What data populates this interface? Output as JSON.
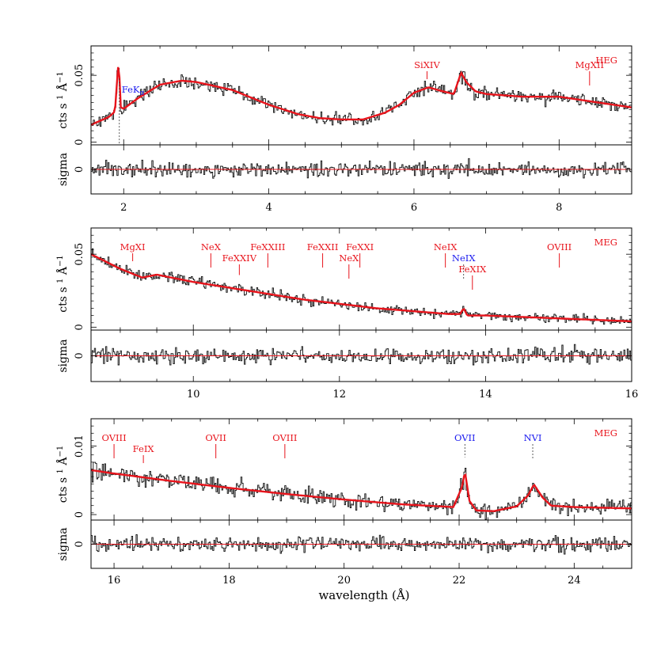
{
  "colors": {
    "data": "#111111",
    "model": "#e8141c",
    "blue": "#1a1aee",
    "frame": "#000000"
  },
  "chart_data": {
    "type": "line",
    "x_label": "wavelength (Å)",
    "x_label_plain": "wavelength (",
    "x_label_unit": "Å",
    "x_label_close": ")",
    "y_label_top": "cts s",
    "y_label_sup1": "1",
    "y_label_A": "Å",
    "y_label_sup2": "−1",
    "resid_label": "sigma",
    "panels": [
      {
        "instrument": "HEG",
        "xlim": [
          1.55,
          9.0
        ],
        "xticks": [
          "2",
          "4",
          "6",
          "8"
        ],
        "ylim": [
          -0.002,
          0.072
        ],
        "yticks": [
          "0",
          "0.05"
        ],
        "resid_ticks": [
          "0"
        ],
        "model_x": [
          1.55,
          1.8,
          1.88,
          1.93,
          1.96,
          2.0,
          2.2,
          2.5,
          2.8,
          3.0,
          3.5,
          4.0,
          4.4,
          4.7,
          5.0,
          5.3,
          5.6,
          5.8,
          6.0,
          6.2,
          6.4,
          6.55,
          6.65,
          6.72,
          6.85,
          7.0,
          7.5,
          8.0,
          8.5,
          9.0
        ],
        "model_y": [
          0.013,
          0.019,
          0.023,
          0.062,
          0.026,
          0.025,
          0.033,
          0.043,
          0.046,
          0.045,
          0.039,
          0.028,
          0.021,
          0.018,
          0.017,
          0.017,
          0.022,
          0.028,
          0.037,
          0.041,
          0.038,
          0.036,
          0.052,
          0.045,
          0.038,
          0.036,
          0.034,
          0.034,
          0.03,
          0.026
        ],
        "noise": 0.007,
        "lines": [
          {
            "label": "FeK",
            "sub": "α",
            "wl": 1.94,
            "color": "blue",
            "pos": "below"
          },
          {
            "label": "SiXIV",
            "wl": 6.18,
            "color": "red",
            "pos": "above"
          },
          {
            "label": "MgXII",
            "wl": 8.42,
            "color": "red",
            "pos": "above"
          }
        ]
      },
      {
        "instrument": "MEG",
        "xlim": [
          8.6,
          16.0
        ],
        "xticks": [
          "10",
          "12",
          "14",
          "16"
        ],
        "ylim": [
          -0.002,
          0.068
        ],
        "yticks": [
          "0",
          "0.05"
        ],
        "resid_ticks": [
          "0"
        ],
        "model_x": [
          8.6,
          8.8,
          9.0,
          9.2,
          9.3,
          9.5,
          10.0,
          10.5,
          11.0,
          11.5,
          12.0,
          12.5,
          13.0,
          13.5,
          13.65,
          13.7,
          13.75,
          14.0,
          14.5,
          15.0,
          15.5,
          16.0
        ],
        "model_y": [
          0.05,
          0.045,
          0.04,
          0.036,
          0.034,
          0.036,
          0.031,
          0.027,
          0.023,
          0.019,
          0.016,
          0.013,
          0.011,
          0.009,
          0.009,
          0.013,
          0.008,
          0.008,
          0.007,
          0.006,
          0.005,
          0.004
        ],
        "noise": 0.005,
        "lines": [
          {
            "label": "MgXI",
            "wl": 9.17,
            "color": "red",
            "pos": "above"
          },
          {
            "label": "NeX",
            "wl": 10.24,
            "color": "red",
            "pos": "above"
          },
          {
            "label": "FeXXIV",
            "wl": 10.63,
            "color": "red",
            "pos": "above"
          },
          {
            "label": "FeXXIII",
            "wl": 11.02,
            "color": "red",
            "pos": "above"
          },
          {
            "label": "FeXXII",
            "wl": 11.77,
            "color": "red",
            "pos": "above"
          },
          {
            "label": "NeX",
            "wl": 12.13,
            "color": "red",
            "pos": "above"
          },
          {
            "label": "FeXXI",
            "wl": 12.28,
            "color": "red",
            "pos": "above"
          },
          {
            "label": "NeIX",
            "wl": 13.45,
            "color": "red",
            "pos": "above"
          },
          {
            "label": "NeIX",
            "wl": 13.7,
            "color": "blue",
            "pos": "above"
          },
          {
            "label": "FeXIX",
            "wl": 13.82,
            "color": "red",
            "pos": "above"
          },
          {
            "label": "OVIII",
            "wl": 15.01,
            "color": "red",
            "pos": "above"
          }
        ]
      },
      {
        "instrument": "MEG",
        "xlim": [
          15.6,
          25.0
        ],
        "xticks": [
          "16",
          "18",
          "20",
          "22",
          "24"
        ],
        "ylim": [
          -0.0008,
          0.014
        ],
        "yticks": [
          "0",
          "0.01"
        ],
        "resid_ticks": [
          "0"
        ],
        "model_x": [
          15.6,
          16.0,
          17.0,
          18.0,
          19.0,
          20.0,
          21.0,
          21.9,
          22.05,
          22.1,
          22.18,
          22.3,
          22.6,
          23.0,
          23.2,
          23.3,
          23.45,
          23.6,
          24.0,
          25.0
        ],
        "model_y": [
          0.0065,
          0.006,
          0.0049,
          0.0039,
          0.003,
          0.0022,
          0.0015,
          0.0011,
          0.004,
          0.0063,
          0.002,
          0.0006,
          0.0005,
          0.0012,
          0.0028,
          0.0044,
          0.0025,
          0.0013,
          0.0011,
          0.0009
        ],
        "noise": 0.0018,
        "lines": [
          {
            "label": "OVIII",
            "wl": 16.0,
            "color": "red",
            "pos": "above"
          },
          {
            "label": "FeIX",
            "wl": 16.51,
            "color": "red",
            "pos": "above"
          },
          {
            "label": "OVII",
            "wl": 17.77,
            "color": "red",
            "pos": "above"
          },
          {
            "label": "OVIII",
            "wl": 18.97,
            "color": "red",
            "pos": "above"
          },
          {
            "label": "OVII",
            "wl": 22.1,
            "color": "blue",
            "pos": "above"
          },
          {
            "label": "NVI",
            "wl": 23.28,
            "color": "blue",
            "pos": "above"
          }
        ]
      }
    ]
  }
}
